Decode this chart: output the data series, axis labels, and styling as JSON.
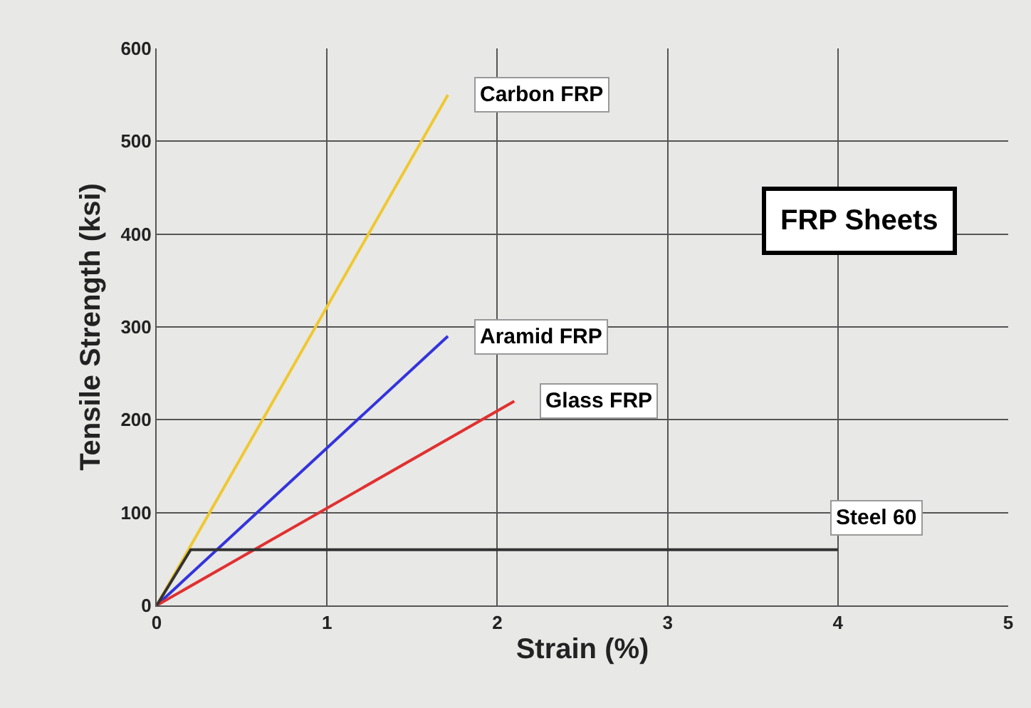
{
  "chart_data": {
    "type": "line",
    "xlabel": "Strain (%)",
    "ylabel": "Tensile Strength (ksi)",
    "xlim": [
      0,
      5
    ],
    "xticks": [
      0,
      1,
      2,
      3,
      4,
      5
    ],
    "ylim": [
      0,
      600
    ],
    "yticks": [
      0,
      100,
      200,
      300,
      400,
      500,
      600
    ],
    "grid": true,
    "legend": false,
    "marker": "none",
    "line_style": "solid",
    "series": [
      {
        "name": "Carbon FRP",
        "color": "#f0c830",
        "x": [
          0,
          1.71
        ],
        "values": [
          0,
          550
        ]
      },
      {
        "name": "Aramid FRP",
        "color": "#3333dd",
        "x": [
          0,
          1.71
        ],
        "values": [
          0,
          290
        ]
      },
      {
        "name": "Glass FRP",
        "color": "#e03030",
        "x": [
          0,
          2.1
        ],
        "values": [
          0,
          220
        ]
      },
      {
        "name": "Steel 60",
        "color": "#333333",
        "x": [
          0,
          0.2,
          4
        ],
        "values": [
          0,
          60,
          60
        ]
      }
    ],
    "annotations": [
      "FRP Sheets"
    ]
  }
}
